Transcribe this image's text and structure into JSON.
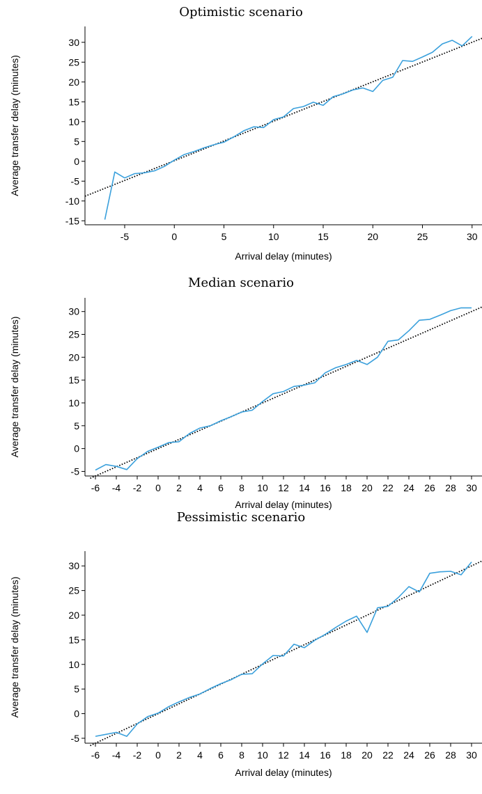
{
  "chart_data": [
    {
      "type": "line",
      "title": "Optimistic scenario",
      "xlabel": "Arrival delay (minutes)",
      "ylabel": "Average transfer delay (minutes)",
      "xlim": [
        -9,
        31
      ],
      "ylim": [
        -16,
        34
      ],
      "xticks": [
        -5,
        0,
        5,
        10,
        15,
        20,
        25,
        30
      ],
      "yticks": [
        -15,
        -10,
        -5,
        0,
        5,
        10,
        15,
        20,
        25,
        30
      ],
      "colors": {
        "series": "#3aa0dc",
        "trend": "#000000"
      },
      "series": [
        {
          "x": [
            -7,
            -6,
            -5,
            -4,
            -3,
            -2,
            -1,
            0,
            1,
            2,
            3,
            4,
            5,
            6,
            7,
            8,
            9,
            10,
            11,
            12,
            13,
            14,
            15,
            16,
            17,
            18,
            19,
            20,
            21,
            22,
            23,
            24,
            25,
            26,
            27,
            28,
            29,
            30
          ],
          "values": [
            -14.7,
            -2.7,
            -4.2,
            -3.1,
            -2.9,
            -2.4,
            -1.3,
            0.3,
            1.7,
            2.5,
            3.4,
            4.2,
            4.8,
            6.2,
            7.7,
            8.7,
            8.5,
            10.5,
            11.2,
            13.3,
            13.8,
            14.9,
            14.1,
            16.3,
            17.0,
            18.0,
            18.5,
            17.6,
            20.4,
            21.2,
            25.4,
            25.2,
            26.3,
            27.5,
            29.6,
            30.5,
            29.1,
            31.5
          ]
        }
      ],
      "trend": {
        "x": [
          -9,
          31
        ],
        "values": [
          -8.8,
          31.0
        ]
      }
    },
    {
      "type": "line",
      "title": "Median scenario",
      "xlabel": "Arrival delay (minutes)",
      "ylabel": "Average transfer delay (minutes)",
      "xlim": [
        -7,
        31
      ],
      "ylim": [
        -6,
        33
      ],
      "xticks": [
        -6,
        -4,
        -2,
        0,
        2,
        4,
        6,
        8,
        10,
        12,
        14,
        16,
        18,
        20,
        22,
        24,
        26,
        28,
        30
      ],
      "yticks": [
        -5,
        0,
        5,
        10,
        15,
        20,
        25,
        30
      ],
      "colors": {
        "series": "#3aa0dc",
        "trend": "#000000"
      },
      "series": [
        {
          "x": [
            -6,
            -5,
            -4,
            -3,
            -2,
            -1,
            0,
            1,
            2,
            3,
            4,
            5,
            6,
            7,
            8,
            9,
            10,
            11,
            12,
            13,
            14,
            15,
            16,
            17,
            18,
            19,
            20,
            21,
            22,
            23,
            24,
            25,
            26,
            27,
            28,
            29,
            30
          ],
          "values": [
            -4.7,
            -3.5,
            -3.9,
            -4.6,
            -2.2,
            -0.6,
            0.3,
            1.3,
            1.5,
            3.3,
            4.5,
            5.0,
            6.1,
            7.0,
            8.0,
            8.4,
            10.3,
            12.0,
            12.5,
            13.6,
            13.9,
            14.4,
            16.6,
            17.7,
            18.4,
            19.3,
            18.4,
            20.0,
            23.5,
            23.8,
            25.8,
            28.1,
            28.3,
            29.2,
            30.2,
            30.8,
            30.8
          ]
        }
      ],
      "trend": {
        "x": [
          -6.5,
          31
        ],
        "values": [
          -6.5,
          31.0
        ]
      }
    },
    {
      "type": "line",
      "title": "Pessimistic scenario",
      "xlabel": "Arrival delay (minutes)",
      "ylabel": "Average transfer delay (minutes)",
      "xlim": [
        -7,
        31
      ],
      "ylim": [
        -6,
        33
      ],
      "xticks": [
        -6,
        -4,
        -2,
        0,
        2,
        4,
        6,
        8,
        10,
        12,
        14,
        16,
        18,
        20,
        22,
        24,
        26,
        28,
        30
      ],
      "yticks": [
        -5,
        0,
        5,
        10,
        15,
        20,
        25,
        30
      ],
      "colors": {
        "series": "#3aa0dc",
        "trend": "#000000"
      },
      "series": [
        {
          "x": [
            -6,
            -5,
            -4,
            -3,
            -2,
            -1,
            0,
            1,
            2,
            3,
            4,
            5,
            6,
            7,
            8,
            9,
            10,
            11,
            12,
            13,
            14,
            15,
            16,
            17,
            18,
            19,
            20,
            21,
            22,
            23,
            24,
            25,
            26,
            27,
            28,
            29,
            30
          ],
          "values": [
            -4.6,
            -4.2,
            -3.8,
            -4.6,
            -2.1,
            -0.6,
            0.1,
            1.4,
            2.4,
            3.3,
            4.0,
            5.1,
            6.1,
            6.9,
            8.0,
            8.1,
            10.1,
            11.8,
            11.7,
            14.1,
            13.4,
            14.9,
            16.1,
            17.5,
            18.8,
            19.8,
            16.5,
            21.5,
            21.8,
            23.6,
            25.8,
            24.7,
            28.5,
            28.8,
            28.9,
            28.2,
            30.8
          ]
        }
      ],
      "trend": {
        "x": [
          -6.5,
          31
        ],
        "values": [
          -6.5,
          31.0
        ]
      }
    }
  ]
}
